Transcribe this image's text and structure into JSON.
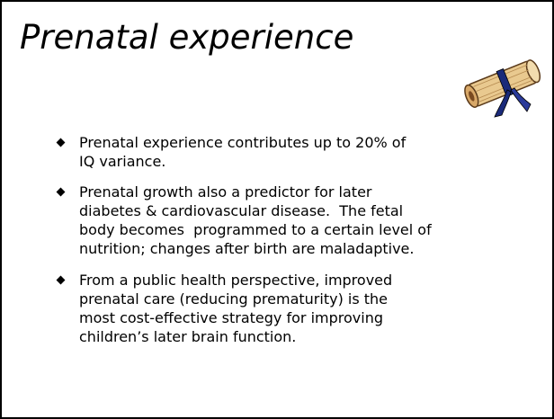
{
  "slide": {
    "title": "Prenatal experience",
    "bullets": [
      {
        "lines": [
          "Prenatal experience contributes up to 20% of",
          "IQ variance."
        ]
      },
      {
        "lines": [
          "Prenatal growth also a predictor for later",
          "diabetes & cardiovascular disease.  The fetal",
          "body becomes  programmed to a certain level of",
          "nutrition; changes after birth are maladaptive."
        ]
      },
      {
        "lines": [
          "From a public health perspective, improved",
          "prenatal care (reducing prematurity) is the",
          "most cost-effective strategy for improving",
          "children’s later brain function."
        ]
      }
    ]
  }
}
